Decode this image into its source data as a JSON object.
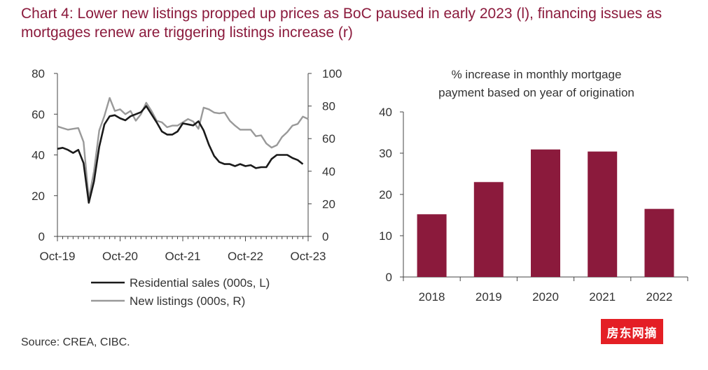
{
  "title": "Chart 4: Lower new listings propped up prices as BoC paused in early 2023 (l), financing issues as mortgages renew are triggering listings increase (r)",
  "source": "Source: CREA, CIBC.",
  "watermark": "房东网摘",
  "colors": {
    "title": "#8b1a3c",
    "sales": "#1a1a1a",
    "listings": "#999999",
    "bar": "#8b1a3c"
  },
  "chart_data": [
    {
      "type": "line",
      "title": "",
      "x_tick_labels": [
        "Oct-19",
        "Oct-20",
        "Oct-21",
        "Oct-22",
        "Oct-23"
      ],
      "x_range": [
        "Oct-19",
        "Oct-23"
      ],
      "left_axis": {
        "range": [
          0,
          80
        ],
        "ticks": [
          0,
          20,
          40,
          60,
          80
        ]
      },
      "right_axis": {
        "range": [
          0,
          100
        ],
        "ticks": [
          0,
          20,
          40,
          60,
          80,
          100
        ]
      },
      "legend_position": "bottom",
      "grid": false,
      "series": [
        {
          "name": "Residential sales (000s, L)",
          "axis": "left",
          "points": [
            [
              "Oct-19",
              43
            ],
            [
              "Nov-19",
              43.5
            ],
            [
              "Dec-19",
              42.5
            ],
            [
              "Jan-20",
              41
            ],
            [
              "Feb-20",
              42.5
            ],
            [
              "Mar-20",
              36
            ],
            [
              "Apr-20",
              16.5
            ],
            [
              "May-20",
              27
            ],
            [
              "Jun-20",
              44
            ],
            [
              "Jul-20",
              55
            ],
            [
              "Aug-20",
              59
            ],
            [
              "Sep-20",
              59.5
            ],
            [
              "Oct-20",
              58
            ],
            [
              "Nov-20",
              57
            ],
            [
              "Dec-20",
              59
            ],
            [
              "Jan-21",
              60
            ],
            [
              "Feb-21",
              61
            ],
            [
              "Mar-21",
              64
            ],
            [
              "Apr-21",
              60
            ],
            [
              "May-21",
              56
            ],
            [
              "Jun-21",
              51.5
            ],
            [
              "Jul-21",
              50
            ],
            [
              "Aug-21",
              50
            ],
            [
              "Sep-21",
              51.5
            ],
            [
              "Oct-21",
              55.5
            ],
            [
              "Nov-21",
              55
            ],
            [
              "Dec-21",
              54.5
            ],
            [
              "Jan-22",
              56.5
            ],
            [
              "Feb-22",
              52
            ],
            [
              "Mar-22",
              45
            ],
            [
              "Apr-22",
              39.5
            ],
            [
              "May-22",
              36.5
            ],
            [
              "Jun-22",
              35.5
            ],
            [
              "Jul-22",
              35.5
            ],
            [
              "Aug-22",
              34.5
            ],
            [
              "Sep-22",
              35.5
            ],
            [
              "Oct-22",
              34.5
            ],
            [
              "Nov-22",
              35
            ],
            [
              "Dec-22",
              33.5
            ],
            [
              "Jan-23",
              34
            ],
            [
              "Feb-23",
              34
            ],
            [
              "Mar-23",
              38
            ],
            [
              "Apr-23",
              40
            ],
            [
              "May-23",
              40
            ],
            [
              "Jun-23",
              40
            ],
            [
              "Jul-23",
              38.5
            ],
            [
              "Aug-23",
              37.5
            ],
            [
              "Sep-23",
              35.5
            ]
          ]
        },
        {
          "name": "New listings (000s, R)",
          "axis": "right",
          "points": [
            [
              "Oct-19",
              67.5
            ],
            [
              "Nov-19",
              66.5
            ],
            [
              "Dec-19",
              65.5
            ],
            [
              "Jan-20",
              66
            ],
            [
              "Feb-20",
              66.5
            ],
            [
              "Mar-20",
              58
            ],
            [
              "Apr-20",
              23
            ],
            [
              "May-20",
              40
            ],
            [
              "Jun-20",
              65
            ],
            [
              "Jul-20",
              74
            ],
            [
              "Aug-20",
              85
            ],
            [
              "Sep-20",
              77
            ],
            [
              "Oct-20",
              78
            ],
            [
              "Nov-20",
              75
            ],
            [
              "Dec-20",
              77
            ],
            [
              "Jan-21",
              71
            ],
            [
              "Feb-21",
              75
            ],
            [
              "Mar-21",
              82
            ],
            [
              "Apr-21",
              77
            ],
            [
              "May-21",
              71
            ],
            [
              "Jun-21",
              70
            ],
            [
              "Jul-21",
              67
            ],
            [
              "Aug-21",
              68
            ],
            [
              "Sep-21",
              68
            ],
            [
              "Oct-21",
              70
            ],
            [
              "Nov-21",
              72
            ],
            [
              "Dec-21",
              70.5
            ],
            [
              "Jan-22",
              66
            ],
            [
              "Feb-22",
              79
            ],
            [
              "Mar-22",
              78
            ],
            [
              "Apr-22",
              76
            ],
            [
              "May-22",
              75.5
            ],
            [
              "Jun-22",
              76
            ],
            [
              "Jul-22",
              71
            ],
            [
              "Aug-22",
              68
            ],
            [
              "Sep-22",
              65.5
            ],
            [
              "Oct-22",
              65.5
            ],
            [
              "Nov-22",
              65.5
            ],
            [
              "Dec-22",
              61.5
            ],
            [
              "Jan-23",
              62
            ],
            [
              "Feb-23",
              57
            ],
            [
              "Mar-23",
              54.5
            ],
            [
              "Apr-23",
              56
            ],
            [
              "May-23",
              61
            ],
            [
              "Jun-23",
              64
            ],
            [
              "Jul-23",
              68
            ],
            [
              "Aug-23",
              69
            ],
            [
              "Sep-23",
              73.5
            ],
            [
              "Oct-23",
              72
            ]
          ]
        }
      ]
    },
    {
      "type": "bar",
      "title": "% increase in monthly mortgage payment based on year of origination",
      "title_lines": [
        "% increase in monthly mortgage",
        "payment based on year of origination"
      ],
      "categories": [
        "2018",
        "2019",
        "2020",
        "2021",
        "2022"
      ],
      "values": [
        15.2,
        23,
        30.9,
        30.4,
        16.5
      ],
      "ylim": [
        0,
        40
      ],
      "yticks": [
        0,
        10,
        20,
        30,
        40
      ],
      "grid": false
    }
  ]
}
